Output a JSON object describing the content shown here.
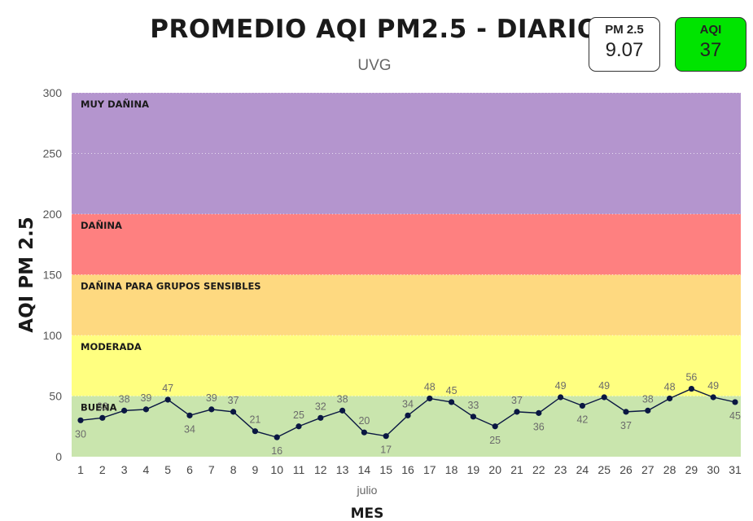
{
  "header": {
    "title": "PROMEDIO AQI PM2.5 - DIARIO",
    "subtitle": "UVG"
  },
  "cards": {
    "pm25": {
      "label": "PM 2.5",
      "value": "9.07",
      "color": "#ffffff"
    },
    "aqi": {
      "label": "AQI",
      "value": "37",
      "color": "#00e400"
    }
  },
  "chart_data": {
    "type": "line",
    "ylabel": "AQI PM 2.5",
    "xlabel": "MES",
    "x_group_label": "julio",
    "ylim": [
      0,
      300
    ],
    "yticks": [
      0,
      50,
      100,
      150,
      200,
      250,
      300
    ],
    "categories": [
      "1",
      "2",
      "3",
      "4",
      "5",
      "6",
      "7",
      "8",
      "9",
      "10",
      "11",
      "12",
      "13",
      "14",
      "15",
      "16",
      "17",
      "18",
      "19",
      "20",
      "21",
      "22",
      "23",
      "24",
      "25",
      "26",
      "27",
      "28",
      "29",
      "30",
      "31"
    ],
    "series": [
      {
        "values": [
          30,
          32,
          38,
          39,
          47,
          34,
          39,
          37,
          21,
          16,
          25,
          32,
          38,
          20,
          17,
          34,
          48,
          45,
          33,
          25,
          37,
          36,
          49,
          42,
          49,
          37,
          38,
          48,
          56,
          49,
          45
        ]
      }
    ],
    "bands": [
      {
        "label": "BUENA",
        "from": 0,
        "to": 50,
        "color": "#c9e5ad"
      },
      {
        "label": "MODERADA",
        "from": 50,
        "to": 100,
        "color": "#ffff80"
      },
      {
        "label": "DAÑINA PARA GRUPOS SENSIBLES",
        "from": 100,
        "to": 150,
        "color": "#fed980"
      },
      {
        "label": "DAÑINA",
        "from": 150,
        "to": 200,
        "color": "#fe8080"
      },
      {
        "label": "MUY DAÑINA",
        "from": 200,
        "to": 300,
        "color": "#b495ce"
      }
    ],
    "line_color": "#0a1742"
  }
}
